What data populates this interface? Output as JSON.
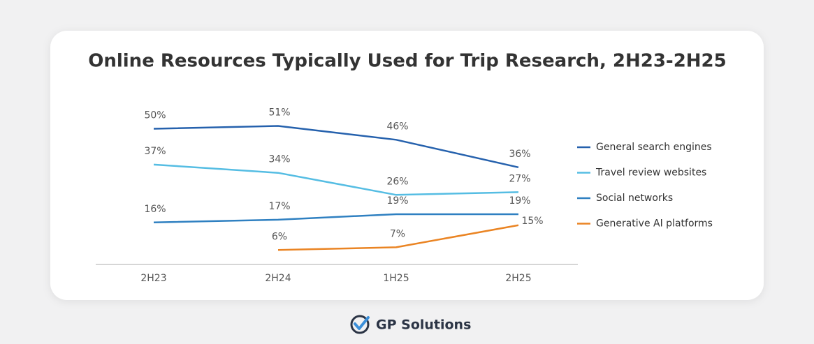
{
  "chart_data": {
    "type": "line",
    "title": "Online Resources Typically Used for Trip Research, 2H23-2H25",
    "categories": [
      "2H23",
      "2H24",
      "1H25",
      "2H25"
    ],
    "series": [
      {
        "name": "General search engines",
        "color": "#2561ad",
        "values": [
          50,
          51,
          46,
          36
        ],
        "value_labels": [
          "50%",
          "51%",
          "46%",
          "36%"
        ]
      },
      {
        "name": "Travel review websites",
        "color": "#55bde3",
        "values": [
          37,
          34,
          26,
          27
        ],
        "value_labels": [
          "37%",
          "34%",
          "26%",
          "27%"
        ]
      },
      {
        "name": "Social networks",
        "color": "#2f80c1",
        "values": [
          16,
          17,
          19,
          19
        ],
        "value_labels": [
          "16%",
          "17%",
          "19%",
          "19%"
        ]
      },
      {
        "name": "Generative AI platforms",
        "color": "#ea8423",
        "values": [
          null,
          6,
          7,
          15
        ],
        "value_labels": [
          null,
          "6%",
          "7%",
          "15%"
        ]
      }
    ],
    "legend": "right"
  },
  "footer": {
    "brand": "GP Solutions"
  }
}
